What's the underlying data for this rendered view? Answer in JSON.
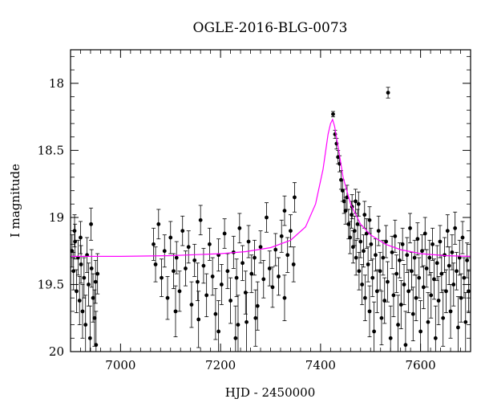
{
  "chart_data": {
    "type": "scatter",
    "title": "OGLE-2016-BLG-0073",
    "xlabel": "HJD - 2450000",
    "ylabel": "I magnitude",
    "xlim": [
      6900,
      7700
    ],
    "ylim": [
      20,
      17.75
    ],
    "y_inverted": true,
    "x_ticks": [
      7000,
      7200,
      7400,
      7600
    ],
    "x_tick_labels": [
      "7000",
      "7200",
      "7400",
      "7600"
    ],
    "y_ticks": [
      18,
      18.5,
      19,
      19.5,
      20
    ],
    "y_tick_labels": [
      "18",
      "18.5",
      "19",
      "19.5",
      "20"
    ],
    "grid": false,
    "colors": {
      "points": "#000000",
      "model": "#ff00ff",
      "axes": "#000000"
    },
    "model": {
      "name": "",
      "baseline": 19.29,
      "peak_x": 7424,
      "peak_mag": 18.27,
      "x": [
        6900,
        7000,
        7100,
        7200,
        7250,
        7300,
        7340,
        7370,
        7390,
        7405,
        7415,
        7420,
        7424,
        7428,
        7435,
        7445,
        7460,
        7480,
        7500,
        7530,
        7560,
        7600,
        7650,
        7700
      ],
      "y": [
        19.29,
        19.29,
        19.285,
        19.27,
        19.255,
        19.225,
        19.17,
        19.07,
        18.9,
        18.64,
        18.38,
        18.3,
        18.27,
        18.32,
        18.47,
        18.7,
        18.9,
        19.05,
        19.13,
        19.2,
        19.24,
        19.27,
        19.285,
        19.29
      ]
    },
    "series": [
      {
        "name": "",
        "points": [
          [
            6903,
            19.25,
            0.12
          ],
          [
            6906,
            19.4,
            0.14
          ],
          [
            6909,
            19.18,
            0.13
          ],
          [
            6912,
            19.55,
            0.16
          ],
          [
            6915,
            19.3,
            0.13
          ],
          [
            6918,
            19.62,
            0.18
          ],
          [
            6921,
            19.35,
            0.14
          ],
          [
            6924,
            19.7,
            0.2
          ],
          [
            6927,
            19.45,
            0.15
          ],
          [
            6930,
            19.8,
            0.22
          ],
          [
            6933,
            19.28,
            0.13
          ],
          [
            6936,
            19.5,
            0.16
          ],
          [
            6939,
            19.9,
            0.24
          ],
          [
            6942,
            19.38,
            0.14
          ],
          [
            6945,
            19.6,
            0.18
          ],
          [
            6948,
            19.75,
            0.21
          ],
          [
            6951,
            19.95,
            0.25
          ],
          [
            6954,
            19.42,
            0.15
          ],
          [
            6908,
            19.1,
            0.12
          ],
          [
            6920,
            19.15,
            0.12
          ],
          [
            6941,
            19.05,
            0.12
          ],
          [
            6950,
            19.48,
            0.16
          ],
          [
            7066,
            19.2,
            0.12
          ],
          [
            7070,
            19.35,
            0.13
          ],
          [
            7076,
            19.05,
            0.11
          ],
          [
            7082,
            19.45,
            0.14
          ],
          [
            7088,
            19.25,
            0.12
          ],
          [
            7094,
            19.6,
            0.16
          ],
          [
            7100,
            19.15,
            0.12
          ],
          [
            7106,
            19.4,
            0.13
          ],
          [
            7112,
            19.3,
            0.12
          ],
          [
            7118,
            19.55,
            0.15
          ],
          [
            7124,
            19.1,
            0.11
          ],
          [
            7130,
            19.38,
            0.13
          ],
          [
            7136,
            19.22,
            0.12
          ],
          [
            7142,
            19.65,
            0.17
          ],
          [
            7148,
            19.32,
            0.12
          ],
          [
            7154,
            19.48,
            0.14
          ],
          [
            7160,
            19.02,
            0.11
          ],
          [
            7166,
            19.36,
            0.13
          ],
          [
            7172,
            19.58,
            0.16
          ],
          [
            7178,
            19.2,
            0.12
          ],
          [
            7184,
            19.44,
            0.14
          ],
          [
            7190,
            19.72,
            0.19
          ],
          [
            7196,
            19.28,
            0.12
          ],
          [
            7202,
            19.5,
            0.15
          ],
          [
            7208,
            19.12,
            0.11
          ],
          [
            7214,
            19.4,
            0.13
          ],
          [
            7220,
            19.62,
            0.17
          ],
          [
            7226,
            19.26,
            0.12
          ],
          [
            7232,
            19.45,
            0.14
          ],
          [
            7238,
            19.08,
            0.11
          ],
          [
            7244,
            19.34,
            0.13
          ],
          [
            7250,
            19.56,
            0.16
          ],
          [
            7256,
            19.18,
            0.12
          ],
          [
            7262,
            19.42,
            0.14
          ],
          [
            7268,
            19.3,
            0.13
          ],
          [
            7274,
            19.66,
            0.18
          ],
          [
            7280,
            19.22,
            0.12
          ],
          [
            7286,
            19.46,
            0.14
          ],
          [
            7292,
            19.0,
            0.11
          ],
          [
            7298,
            19.38,
            0.13
          ],
          [
            7304,
            19.52,
            0.15
          ],
          [
            7310,
            19.24,
            0.12
          ],
          [
            7316,
            19.44,
            0.14
          ],
          [
            7322,
            19.14,
            0.12
          ],
          [
            7328,
            19.6,
            0.17
          ],
          [
            7334,
            19.28,
            0.13
          ],
          [
            7340,
            19.1,
            0.12
          ],
          [
            7346,
            19.35,
            0.13
          ],
          [
            7230,
            19.9,
            0.24
          ],
          [
            7235,
            19.8,
            0.22
          ],
          [
            7196,
            19.85,
            0.23
          ],
          [
            7252,
            19.78,
            0.22
          ],
          [
            7270,
            19.75,
            0.21
          ],
          [
            7328,
            18.95,
            0.11
          ],
          [
            7348,
            18.85,
            0.11
          ],
          [
            7110,
            19.7,
            0.19
          ],
          [
            7156,
            19.76,
            0.21
          ],
          [
            7425,
            18.23,
            0.02
          ],
          [
            7429,
            18.38,
            0.03
          ],
          [
            7432,
            18.45,
            0.04
          ],
          [
            7435,
            18.55,
            0.05
          ],
          [
            7438,
            18.6,
            0.06
          ],
          [
            7441,
            18.72,
            0.07
          ],
          [
            7444,
            18.8,
            0.08
          ],
          [
            7447,
            18.88,
            0.09
          ],
          [
            7450,
            18.95,
            0.1
          ],
          [
            7453,
            18.85,
            0.09
          ],
          [
            7456,
            19.05,
            0.11
          ],
          [
            7459,
            19.15,
            0.12
          ],
          [
            7462,
            18.98,
            0.1
          ],
          [
            7465,
            19.22,
            0.12
          ],
          [
            7468,
            19.1,
            0.11
          ],
          [
            7471,
            19.3,
            0.13
          ],
          [
            7474,
            19.05,
            0.11
          ],
          [
            7477,
            19.4,
            0.14
          ],
          [
            7480,
            19.18,
            0.12
          ],
          [
            7483,
            19.5,
            0.15
          ],
          [
            7486,
            19.25,
            0.12
          ],
          [
            7489,
            19.6,
            0.17
          ],
          [
            7492,
            19.12,
            0.11
          ],
          [
            7495,
            19.35,
            0.13
          ],
          [
            7498,
            19.7,
            0.19
          ],
          [
            7501,
            19.2,
            0.12
          ],
          [
            7504,
            19.45,
            0.14
          ],
          [
            7507,
            19.85,
            0.22
          ],
          [
            7510,
            19.28,
            0.12
          ],
          [
            7513,
            19.55,
            0.16
          ],
          [
            7516,
            19.1,
            0.11
          ],
          [
            7519,
            19.4,
            0.14
          ],
          [
            7522,
            19.75,
            0.2
          ],
          [
            7525,
            19.3,
            0.13
          ],
          [
            7528,
            19.62,
            0.17
          ],
          [
            7531,
            19.18,
            0.12
          ],
          [
            7534,
            19.48,
            0.15
          ],
          [
            7540,
            19.9,
            0.24
          ],
          [
            7543,
            19.26,
            0.12
          ],
          [
            7546,
            19.58,
            0.16
          ],
          [
            7549,
            19.14,
            0.12
          ],
          [
            7552,
            19.42,
            0.14
          ],
          [
            7555,
            19.8,
            0.22
          ],
          [
            7558,
            19.32,
            0.13
          ],
          [
            7561,
            19.65,
            0.18
          ],
          [
            7564,
            19.2,
            0.12
          ],
          [
            7567,
            19.5,
            0.15
          ],
          [
            7570,
            19.95,
            0.25
          ],
          [
            7573,
            19.28,
            0.13
          ],
          [
            7576,
            19.55,
            0.16
          ],
          [
            7579,
            19.08,
            0.11
          ],
          [
            7582,
            19.4,
            0.14
          ],
          [
            7585,
            19.72,
            0.2
          ],
          [
            7588,
            19.3,
            0.13
          ],
          [
            7591,
            19.6,
            0.17
          ],
          [
            7594,
            19.16,
            0.12
          ],
          [
            7597,
            19.45,
            0.15
          ],
          [
            7600,
            19.85,
            0.23
          ],
          [
            7603,
            19.25,
            0.12
          ],
          [
            7606,
            19.52,
            0.16
          ],
          [
            7609,
            19.12,
            0.12
          ],
          [
            7612,
            19.38,
            0.14
          ],
          [
            7615,
            19.78,
            0.22
          ],
          [
            7618,
            19.3,
            0.13
          ],
          [
            7621,
            19.58,
            0.17
          ],
          [
            7624,
            19.2,
            0.12
          ],
          [
            7627,
            19.46,
            0.15
          ],
          [
            7630,
            19.9,
            0.24
          ],
          [
            7633,
            19.34,
            0.13
          ],
          [
            7636,
            19.62,
            0.18
          ],
          [
            7639,
            19.18,
            0.12
          ],
          [
            7642,
            19.42,
            0.14
          ],
          [
            7645,
            19.75,
            0.21
          ],
          [
            7648,
            19.28,
            0.13
          ],
          [
            7651,
            19.55,
            0.16
          ],
          [
            7654,
            19.1,
            0.12
          ],
          [
            7657,
            19.36,
            0.14
          ],
          [
            7660,
            19.7,
            0.2
          ],
          [
            7663,
            19.26,
            0.13
          ],
          [
            7666,
            19.5,
            0.16
          ],
          [
            7669,
            19.08,
            0.12
          ],
          [
            7672,
            19.4,
            0.14
          ],
          [
            7675,
            19.82,
            0.23
          ],
          [
            7678,
            19.3,
            0.13
          ],
          [
            7681,
            19.6,
            0.18
          ],
          [
            7684,
            19.15,
            0.12
          ],
          [
            7687,
            19.45,
            0.15
          ],
          [
            7690,
            19.78,
            0.22
          ],
          [
            7693,
            19.32,
            0.13
          ],
          [
            7696,
            19.55,
            0.16
          ],
          [
            7470,
            18.88,
            0.09
          ],
          [
            7463,
            18.92,
            0.09
          ],
          [
            7476,
            18.9,
            0.09
          ],
          [
            7488,
            18.98,
            0.1
          ],
          [
            7498,
            19.02,
            0.1
          ],
          [
            7535,
            18.07,
            0.04
          ]
        ]
      }
    ]
  }
}
